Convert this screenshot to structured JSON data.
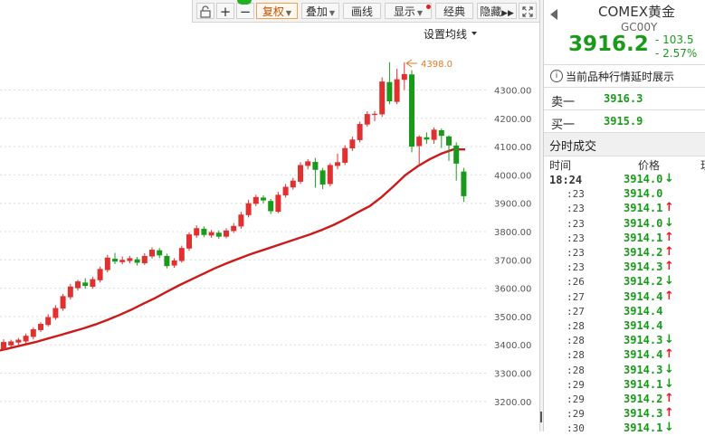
{
  "toolbar": {
    "fuquan": "复权",
    "diejia": "叠加",
    "huaxian": "画线",
    "xianshi": "显示",
    "jingdian": "经典",
    "yincang": "隐藏"
  },
  "chart": {
    "ma_setting": "设置均线",
    "high_label": "4398.0",
    "y_ticks": [
      "4300.00",
      "4200.00",
      "4100.00",
      "4000.00",
      "3900.00",
      "3800.00",
      "3700.00",
      "3600.00",
      "3500.00",
      "3400.00",
      "3300.00",
      "3200.00"
    ],
    "colors": {
      "up": "#e03030",
      "down": "#1a9a1a",
      "ma": "#cc1a1a",
      "high": "#e07b20"
    }
  },
  "chart_data": {
    "type": "candlestick",
    "ylim": [
      3100,
      4400
    ],
    "candles": [
      [
        3385,
        3410,
        3380,
        3420
      ],
      [
        3398,
        3412,
        3392,
        3418
      ],
      [
        3408,
        3418,
        3400,
        3424
      ],
      [
        3412,
        3432,
        3405,
        3440
      ],
      [
        3428,
        3455,
        3420,
        3462
      ],
      [
        3452,
        3474,
        3445,
        3480
      ],
      [
        3470,
        3498,
        3465,
        3508
      ],
      [
        3495,
        3530,
        3488,
        3540
      ],
      [
        3528,
        3572,
        3520,
        3580
      ],
      [
        3568,
        3606,
        3560,
        3615
      ],
      [
        3600,
        3624,
        3592,
        3630
      ],
      [
        3620,
        3608,
        3598,
        3635
      ],
      [
        3605,
        3632,
        3598,
        3640
      ],
      [
        3628,
        3668,
        3620,
        3676
      ],
      [
        3664,
        3708,
        3656,
        3718
      ],
      [
        3704,
        3694,
        3685,
        3725
      ],
      [
        3692,
        3700,
        3684,
        3712
      ],
      [
        3696,
        3706,
        3688,
        3714
      ],
      [
        3702,
        3690,
        3680,
        3710
      ],
      [
        3688,
        3714,
        3682,
        3724
      ],
      [
        3712,
        3736,
        3705,
        3744
      ],
      [
        3734,
        3716,
        3706,
        3742
      ],
      [
        3714,
        3678,
        3670,
        3722
      ],
      [
        3680,
        3698,
        3672,
        3706
      ],
      [
        3696,
        3742,
        3690,
        3750
      ],
      [
        3740,
        3790,
        3732,
        3798
      ],
      [
        3786,
        3812,
        3778,
        3822
      ],
      [
        3810,
        3788,
        3780,
        3818
      ],
      [
        3786,
        3798,
        3778,
        3806
      ],
      [
        3796,
        3782,
        3775,
        3804
      ],
      [
        3782,
        3804,
        3776,
        3812
      ],
      [
        3802,
        3820,
        3795,
        3830
      ],
      [
        3818,
        3860,
        3810,
        3870
      ],
      [
        3858,
        3900,
        3850,
        3912
      ],
      [
        3898,
        3922,
        3890,
        3930
      ],
      [
        3920,
        3910,
        3900,
        3928
      ],
      [
        3908,
        3872,
        3862,
        3915
      ],
      [
        3870,
        3930,
        3865,
        3940
      ],
      [
        3928,
        3958,
        3920,
        3968
      ],
      [
        3956,
        3980,
        3948,
        3990
      ],
      [
        3976,
        4035,
        3968,
        4045
      ],
      [
        4032,
        4048,
        4020,
        4056
      ],
      [
        4046,
        4018,
        3955,
        4060
      ],
      [
        4016,
        3966,
        3950,
        4025
      ],
      [
        3968,
        4035,
        3960,
        4042
      ],
      [
        4032,
        4045,
        4020,
        4075
      ],
      [
        4043,
        4095,
        4035,
        4105
      ],
      [
        4094,
        4125,
        4085,
        4135
      ],
      [
        4123,
        4180,
        4115,
        4188
      ],
      [
        4178,
        4215,
        4170,
        4225
      ],
      [
        4212,
        4216,
        4190,
        4226
      ],
      [
        4214,
        4330,
        4205,
        4345
      ],
      [
        4328,
        4260,
        4250,
        4398
      ],
      [
        4258,
        4338,
        4250,
        4375
      ],
      [
        4336,
        4356,
        4300,
        4398
      ],
      [
        4355,
        4100,
        4080,
        4370
      ],
      [
        4102,
        4135,
        4035,
        4140
      ],
      [
        4133,
        4125,
        4110,
        4150
      ],
      [
        4124,
        4160,
        4110,
        4168
      ],
      [
        4158,
        4138,
        4095,
        4164
      ],
      [
        4136,
        4104,
        4050,
        4140
      ],
      [
        4104,
        4040,
        3980,
        4115
      ],
      [
        4012,
        3925,
        3905,
        4025
      ]
    ],
    "ma": [
      3380,
      3390,
      3400,
      3410,
      3422,
      3434,
      3446,
      3458,
      3472,
      3488,
      3505,
      3524,
      3545,
      3565,
      3588,
      3610,
      3630,
      3650,
      3670,
      3688,
      3704,
      3720,
      3734,
      3748,
      3762,
      3776,
      3790,
      3806,
      3824,
      3845,
      3868,
      3890,
      3922,
      3960,
      4000,
      4030,
      4055,
      4075,
      4090,
      4090
    ],
    "high_marker": 4398.0
  },
  "quote": {
    "name": "COMEX黄金",
    "code": "GC00Y",
    "price": "3916.2",
    "change": "- 103.5",
    "pct": "- 2.57%",
    "notice": "当前品种行情延时展示",
    "sell_label": "卖一",
    "sell_price": "3916.3",
    "buy_label": "买一",
    "buy_price": "3915.9",
    "trades_title": "分时成交",
    "col_time": "时间",
    "col_price": "价格",
    "col_vol": "现",
    "trades": [
      {
        "time": "18:24",
        "price": "3914.0",
        "dir": "down"
      },
      {
        "time": ":23",
        "price": "3914.0",
        "dir": "none"
      },
      {
        "time": ":23",
        "price": "3914.1",
        "dir": "up"
      },
      {
        "time": ":23",
        "price": "3914.0",
        "dir": "down"
      },
      {
        "time": ":23",
        "price": "3914.1",
        "dir": "up"
      },
      {
        "time": ":23",
        "price": "3914.2",
        "dir": "up"
      },
      {
        "time": ":23",
        "price": "3914.3",
        "dir": "up"
      },
      {
        "time": ":26",
        "price": "3914.2",
        "dir": "down"
      },
      {
        "time": ":27",
        "price": "3914.4",
        "dir": "up"
      },
      {
        "time": ":27",
        "price": "3914.4",
        "dir": "none"
      },
      {
        "time": ":28",
        "price": "3914.4",
        "dir": "none"
      },
      {
        "time": ":28",
        "price": "3914.3",
        "dir": "down"
      },
      {
        "time": ":28",
        "price": "3914.4",
        "dir": "up"
      },
      {
        "time": ":28",
        "price": "3914.3",
        "dir": "down"
      },
      {
        "time": ":29",
        "price": "3914.1",
        "dir": "down"
      },
      {
        "time": ":29",
        "price": "3914.2",
        "dir": "up"
      },
      {
        "time": ":29",
        "price": "3914.3",
        "dir": "up"
      },
      {
        "time": ":30",
        "price": "3914.1",
        "dir": "down"
      }
    ]
  }
}
